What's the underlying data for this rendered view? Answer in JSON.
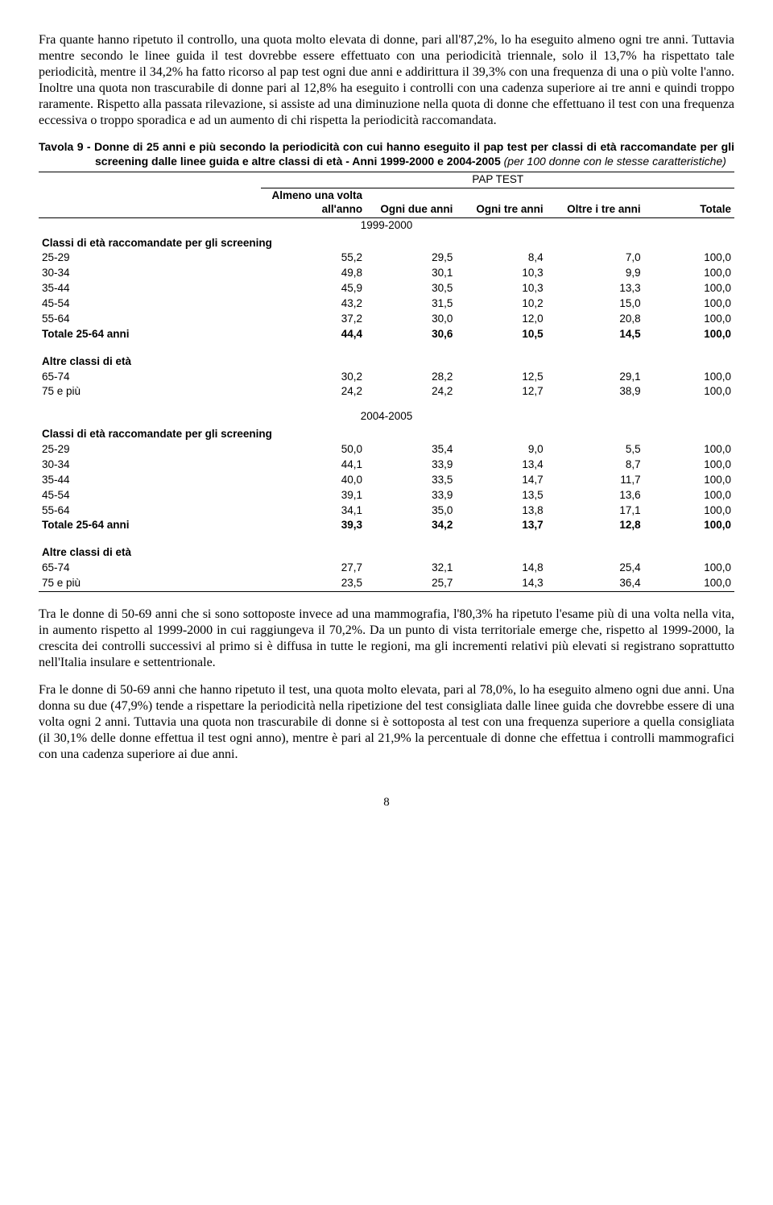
{
  "paragraphs": {
    "p1": "Fra quante hanno ripetuto il controllo, una quota molto elevata di donne, pari all'87,2%, lo ha eseguito almeno ogni tre anni. Tuttavia mentre secondo le linee guida il test dovrebbe essere effettuato con una periodicità triennale, solo il 13,7% ha rispettato tale periodicità, mentre il 34,2% ha fatto ricorso al pap test ogni due anni e addirittura il 39,3% con una frequenza di una o più volte l'anno. Inoltre una quota non trascurabile di donne pari al 12,8% ha eseguito i controlli con una cadenza superiore ai tre anni e quindi troppo raramente. Rispetto alla passata rilevazione, si assiste ad una diminuzione nella quota di donne che effettuano il test con una frequenza eccessiva o troppo sporadica e ad un aumento di chi rispetta la periodicità raccomandata.",
    "p2": "Tra le donne di 50-69 anni che si sono sottoposte invece ad una mammografia, l'80,3% ha ripetuto l'esame più di una volta nella vita, in aumento rispetto al 1999-2000 in cui raggiungeva il 70,2%. Da un punto di vista territoriale emerge che, rispetto al 1999-2000, la crescita dei controlli successivi al primo si è diffusa in tutte le regioni, ma gli incrementi relativi più elevati si registrano soprattutto nell'Italia insulare e settentrionale.",
    "p3": "Fra le donne di 50-69 anni che hanno ripetuto il test, una quota molto elevata, pari al 78,0%, lo ha eseguito almeno ogni due anni. Una donna su due (47,9%) tende a rispettare la periodicità nella ripetizione del test consigliata dalle linee guida che dovrebbe essere di una volta ogni 2 anni. Tuttavia una quota non trascurabile di donne si è sottoposta al test con una frequenza superiore a quella consigliata (il 30,1% delle donne effettua il test ogni anno), mentre è pari al 21,9% la percentuale di donne che effettua i controlli mammografici con una cadenza superiore ai due anni."
  },
  "table": {
    "caption_bold": "Tavola 9 - Donne di 25 anni e più secondo la periodicità con cui hanno eseguito il pap test per classi di età raccomandate per gli screening dalle linee guida e altre classi di età - Anni 1999-2000 e 2004-2005 ",
    "caption_italic": "(per 100 donne con le stesse caratteristiche)",
    "group_header": "PAP TEST",
    "columns": [
      "Almeno una volta all'anno",
      "Ogni due anni",
      "Ogni tre anni",
      "Oltre i tre anni",
      "Totale"
    ],
    "year1": "1999-2000",
    "year2": "2004-2005",
    "section_rec": "Classi di età raccomandate per gli screening",
    "section_other": "Altre classi di età",
    "rows_year1_rec": [
      {
        "label": "25-29",
        "v": [
          "55,2",
          "29,5",
          "8,4",
          "7,0",
          "100,0"
        ]
      },
      {
        "label": "30-34",
        "v": [
          "49,8",
          "30,1",
          "10,3",
          "9,9",
          "100,0"
        ]
      },
      {
        "label": "35-44",
        "v": [
          "45,9",
          "30,5",
          "10,3",
          "13,3",
          "100,0"
        ]
      },
      {
        "label": "45-54",
        "v": [
          "43,2",
          "31,5",
          "10,2",
          "15,0",
          "100,0"
        ]
      },
      {
        "label": "55-64",
        "v": [
          "37,2",
          "30,0",
          "12,0",
          "20,8",
          "100,0"
        ]
      }
    ],
    "total1_rec": {
      "label": "Totale 25-64 anni",
      "v": [
        "44,4",
        "30,6",
        "10,5",
        "14,5",
        "100,0"
      ]
    },
    "rows_year1_other": [
      {
        "label": "65-74",
        "v": [
          "30,2",
          "28,2",
          "12,5",
          "29,1",
          "100,0"
        ]
      },
      {
        "label": "75 e più",
        "v": [
          "24,2",
          "24,2",
          "12,7",
          "38,9",
          "100,0"
        ]
      }
    ],
    "rows_year2_rec": [
      {
        "label": "25-29",
        "v": [
          "50,0",
          "35,4",
          "9,0",
          "5,5",
          "100,0"
        ]
      },
      {
        "label": "30-34",
        "v": [
          "44,1",
          "33,9",
          "13,4",
          "8,7",
          "100,0"
        ]
      },
      {
        "label": "35-44",
        "v": [
          "40,0",
          "33,5",
          "14,7",
          "11,7",
          "100,0"
        ]
      },
      {
        "label": "45-54",
        "v": [
          "39,1",
          "33,9",
          "13,5",
          "13,6",
          "100,0"
        ]
      },
      {
        "label": "55-64",
        "v": [
          "34,1",
          "35,0",
          "13,8",
          "17,1",
          "100,0"
        ]
      }
    ],
    "total2_rec": {
      "label": "Totale 25-64 anni",
      "v": [
        "39,3",
        "34,2",
        "13,7",
        "12,8",
        "100,0"
      ]
    },
    "rows_year2_other": [
      {
        "label": "65-74",
        "v": [
          "27,7",
          "32,1",
          "14,8",
          "25,4",
          "100,0"
        ]
      },
      {
        "label": "75 e più",
        "v": [
          "23,5",
          "25,7",
          "14,3",
          "36,4",
          "100,0"
        ]
      }
    ]
  },
  "page_number": "8",
  "colors": {
    "text": "#000000",
    "bg": "#ffffff",
    "rule": "#000000"
  }
}
